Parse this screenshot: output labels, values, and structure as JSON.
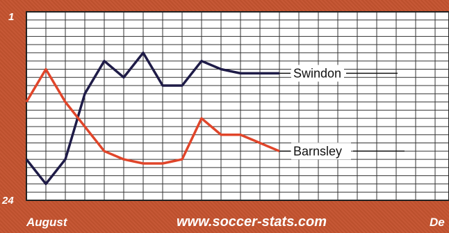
{
  "chart_data": {
    "type": "line",
    "title": "",
    "xlabel": "",
    "ylabel": "",
    "y_axis_inverted": true,
    "ylim": [
      24,
      1
    ],
    "ytick_labels": [
      "1",
      "24"
    ],
    "x_start_label": "August",
    "x_end_label": "De",
    "watermark": "www.soccer-stats.com",
    "grid": true,
    "x": [
      1,
      2,
      3,
      4,
      5,
      6,
      7,
      8,
      9,
      10,
      11,
      12,
      13,
      14
    ],
    "series": [
      {
        "name": "Swindon",
        "color": "#1e1b47",
        "values": [
          19,
          22,
          19,
          11,
          7,
          9,
          6,
          10,
          10,
          7,
          8,
          8.5,
          8.5,
          8.5
        ]
      },
      {
        "name": "Barnsley",
        "color": "#e0452a",
        "values": [
          12,
          8,
          12,
          15,
          18,
          19,
          19.5,
          19.5,
          19,
          14,
          16,
          16,
          17,
          18
        ]
      }
    ]
  }
}
